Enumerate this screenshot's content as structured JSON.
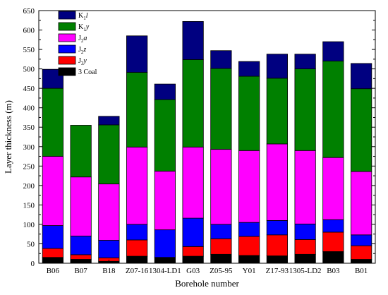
{
  "chart_data": {
    "type": "bar",
    "stacked": true,
    "xlabel": "Borehole number",
    "ylabel": "Layer thickness (m)",
    "ylim": [
      0,
      650
    ],
    "yticks": [
      0,
      50,
      100,
      150,
      200,
      250,
      300,
      350,
      400,
      450,
      500,
      550,
      600,
      650
    ],
    "grid": false,
    "legend_position": "top-left",
    "categories": [
      "B06",
      "B07",
      "B18",
      "Z07-16",
      "1304-LD1",
      "G03",
      "Z05-95",
      "Y01",
      "Z17-93",
      "1305-LD2",
      "B03",
      "B01"
    ],
    "series": [
      {
        "name": "3 Coal",
        "color": "#000000",
        "values": [
          15,
          10,
          5,
          18,
          15,
          18,
          23,
          20,
          19,
          23,
          30,
          10
        ]
      },
      {
        "name": "J3y",
        "base": "J",
        "sub": "3",
        "italic": "y",
        "color": "#ff0000",
        "values": [
          23,
          12,
          9,
          42,
          0,
          25,
          40,
          49,
          54,
          38,
          50,
          35
        ]
      },
      {
        "name": "J2z",
        "base": "J",
        "sub": "2",
        "italic": "z",
        "color": "#0000ff",
        "values": [
          59,
          48,
          45,
          40,
          71,
          73,
          37,
          36,
          37,
          40,
          32,
          28
        ]
      },
      {
        "name": "J2a",
        "base": "J",
        "sub": "2",
        "italic": "a",
        "color": "#ff00ff",
        "values": [
          178,
          152,
          145,
          199,
          151,
          183,
          193,
          185,
          197,
          189,
          160,
          163
        ]
      },
      {
        "name": "K1y",
        "base": "K",
        "sub": "1",
        "italic": "y",
        "color": "#008000",
        "values": [
          175,
          133,
          152,
          192,
          184,
          225,
          208,
          191,
          169,
          210,
          248,
          213
        ]
      },
      {
        "name": "K1l",
        "base": "K",
        "sub": "1",
        "italic": "l",
        "color": "#000080",
        "values": [
          49,
          0,
          22,
          94,
          40,
          98,
          46,
          38,
          62,
          38,
          50,
          65
        ]
      }
    ],
    "legend_order": [
      "K1l",
      "K1y",
      "J2a",
      "J2z",
      "J3y",
      "3 Coal"
    ]
  }
}
